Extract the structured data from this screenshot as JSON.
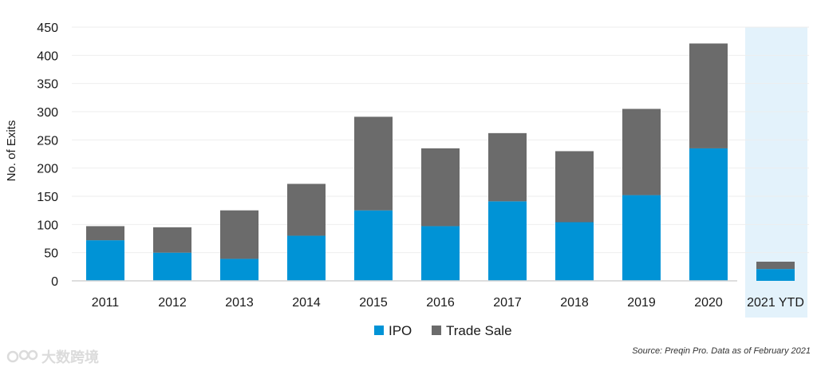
{
  "chart_data": {
    "type": "bar",
    "stacked": true,
    "categories": [
      "2011",
      "2012",
      "2013",
      "2014",
      "2015",
      "2016",
      "2017",
      "2018",
      "2019",
      "2020",
      "2021 YTD"
    ],
    "series": [
      {
        "name": "IPO",
        "color": "#0093d6",
        "values": [
          72,
          50,
          39,
          80,
          125,
          97,
          141,
          104,
          152,
          235,
          21
        ]
      },
      {
        "name": "Trade Sale",
        "color": "#6b6b6b",
        "values": [
          25,
          45,
          86,
          92,
          166,
          138,
          121,
          126,
          153,
          186,
          13
        ]
      }
    ],
    "ylabel": "No. of Exits",
    "xlabel": "",
    "title": "",
    "ylim": [
      0,
      450
    ],
    "yticks": [
      0,
      50,
      100,
      150,
      200,
      250,
      300,
      350,
      400,
      450
    ],
    "grid": true,
    "legend_position": "bottom-center",
    "highlight_category": "2021 YTD",
    "highlight_color": "#e3f2fb"
  },
  "source_note": "Source: Preqin Pro. Data as of February 2021",
  "watermark": {
    "text": "大数跨境",
    "icon": "watermark-logo-icon"
  }
}
